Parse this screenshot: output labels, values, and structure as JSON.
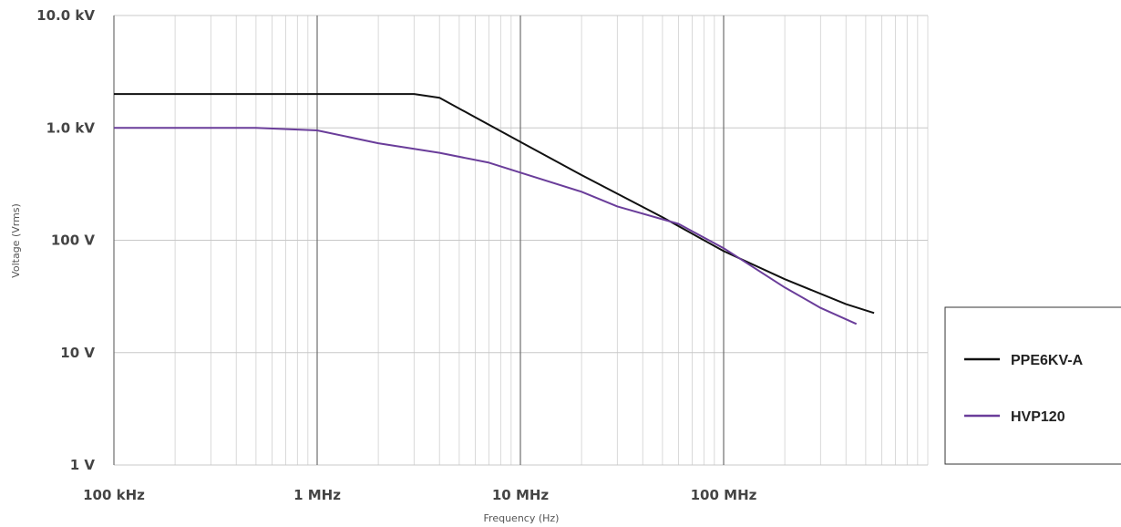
{
  "chart_data": {
    "type": "line",
    "xscale": "log",
    "yscale": "log",
    "xlim": [
      100000,
      700000000
    ],
    "ylim": [
      1,
      10000
    ],
    "grid": true,
    "legend_position": "right",
    "xlabel": "Frequency (Hz)",
    "ylabel": "Voltage (Vrms)",
    "x_ticks": [
      {
        "value": 100000,
        "label": "100 kHz"
      },
      {
        "value": 1000000,
        "label": "1 MHz"
      },
      {
        "value": 10000000,
        "label": "10 MHz"
      },
      {
        "value": 100000000,
        "label": "100 MHz"
      }
    ],
    "y_ticks": [
      {
        "value": 1,
        "label": "1 V"
      },
      {
        "value": 10,
        "label": "10 V"
      },
      {
        "value": 100,
        "label": "100 V"
      },
      {
        "value": 1000,
        "label": "1.0 kV"
      },
      {
        "value": 10000,
        "label": "10.0 kV"
      }
    ],
    "series": [
      {
        "name": "PPE6KV-A",
        "color": "#111111",
        "x": [
          100000,
          1000000,
          3000000,
          4000000,
          10000000,
          20000000,
          50000000,
          100000000,
          200000000,
          400000000,
          550000000
        ],
        "y": [
          2000,
          2000,
          2000,
          1850,
          750,
          380,
          160,
          80,
          45,
          27,
          22.5
        ]
      },
      {
        "name": "HVP120",
        "color": "#6a3d9a",
        "x": [
          100000,
          500000,
          1000000,
          2000000,
          4000000,
          7000000,
          10000000,
          20000000,
          30000000,
          60000000,
          100000000,
          200000000,
          300000000,
          450000000
        ],
        "y": [
          1000,
          1000,
          950,
          730,
          600,
          490,
          400,
          270,
          200,
          140,
          85,
          38,
          25,
          18
        ]
      }
    ]
  }
}
